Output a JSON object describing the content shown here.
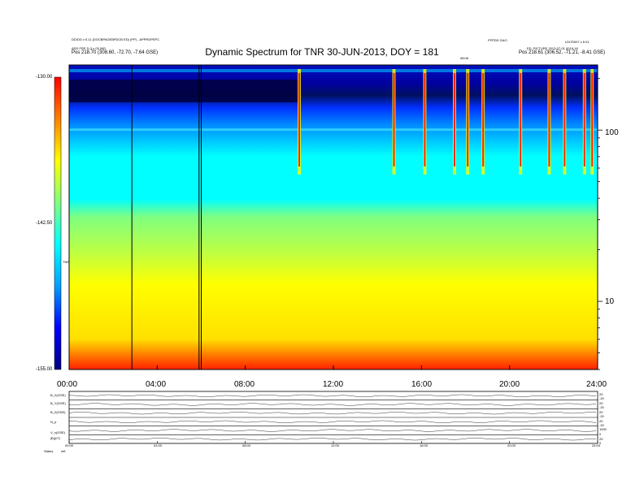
{
  "header": {
    "title": "Dynamic Spectrum for TNR 30-JUN-2013, DOY = 181",
    "top_left_line1": "DD/DD v 6.11 (DOCBPAGEBPDCB ED) (PP) - APPRDPEPC",
    "top_left_line2": "ADD FRE D-3 v 03.06D",
    "top_left_line3": "Pos 218.70 (308.60, -72.70, -7.64 GSE)",
    "top_right_line1": "FPPDD GAO",
    "top_right_line2": "LDCR007 v 6.01",
    "top_right_line3": "ED_PICTURE 2013-07-01 0018-18",
    "top_right_line4": "Pos 218.61 (306.52, -71.21, -8.41 GSE)",
    "marker_label": "08:06"
  },
  "colorbar": {
    "top_label": "-130.00",
    "mid_label": "-142.50",
    "bottom_label": "-155.00",
    "unit_label": "TNR",
    "colors": [
      "#000080",
      "#0000ff",
      "#00a0ff",
      "#00ffff",
      "#80ff80",
      "#ffff00",
      "#ff8000",
      "#ff0000"
    ]
  },
  "chart_data": {
    "type": "heatmap",
    "title": "Dynamic Spectrum for TNR 30-JUN-2013, DOY = 181",
    "x_tick_labels": [
      "00:00",
      "04:00",
      "08:00",
      "12:00",
      "16:00",
      "20:00",
      "24:00"
    ],
    "x_ticks_hours": [
      0,
      4,
      8,
      12,
      16,
      20,
      24
    ],
    "xlim_hours": [
      0,
      24
    ],
    "y_right_ticks": [
      {
        "value": 10,
        "label": "10"
      },
      {
        "value": 100,
        "label": "100"
      }
    ],
    "y_scale": "log",
    "ylim_khz": [
      4,
      240
    ],
    "color_range_db": [
      -155.0,
      -130.0
    ],
    "vertical_lines_hours": [
      2.85,
      5.9,
      6.0
    ],
    "bursts_hours": [
      10.45,
      14.75,
      16.15,
      17.5,
      18.1,
      18.8,
      20.5,
      21.8,
      22.5,
      23.4,
      23.75
    ]
  },
  "subpanels": {
    "row_labels": [
      "B_X(GSE)",
      "B_Y(GSE)",
      "B_Z(GSE)",
      "N_p",
      "V_x(GSE)",
      "|B|(nT)"
    ],
    "right_values": [
      "20",
      "-20",
      "20",
      "-20",
      "20",
      "-20",
      "20",
      "-20",
      "1000",
      "0",
      "20",
      "0"
    ],
    "x_tick_labels": [
      "00:00",
      "04:00",
      "08:00",
      "12:00",
      "16:00",
      "20:00",
      "24:00"
    ],
    "footer_left": "Status",
    "footer_left2": "mfi"
  }
}
